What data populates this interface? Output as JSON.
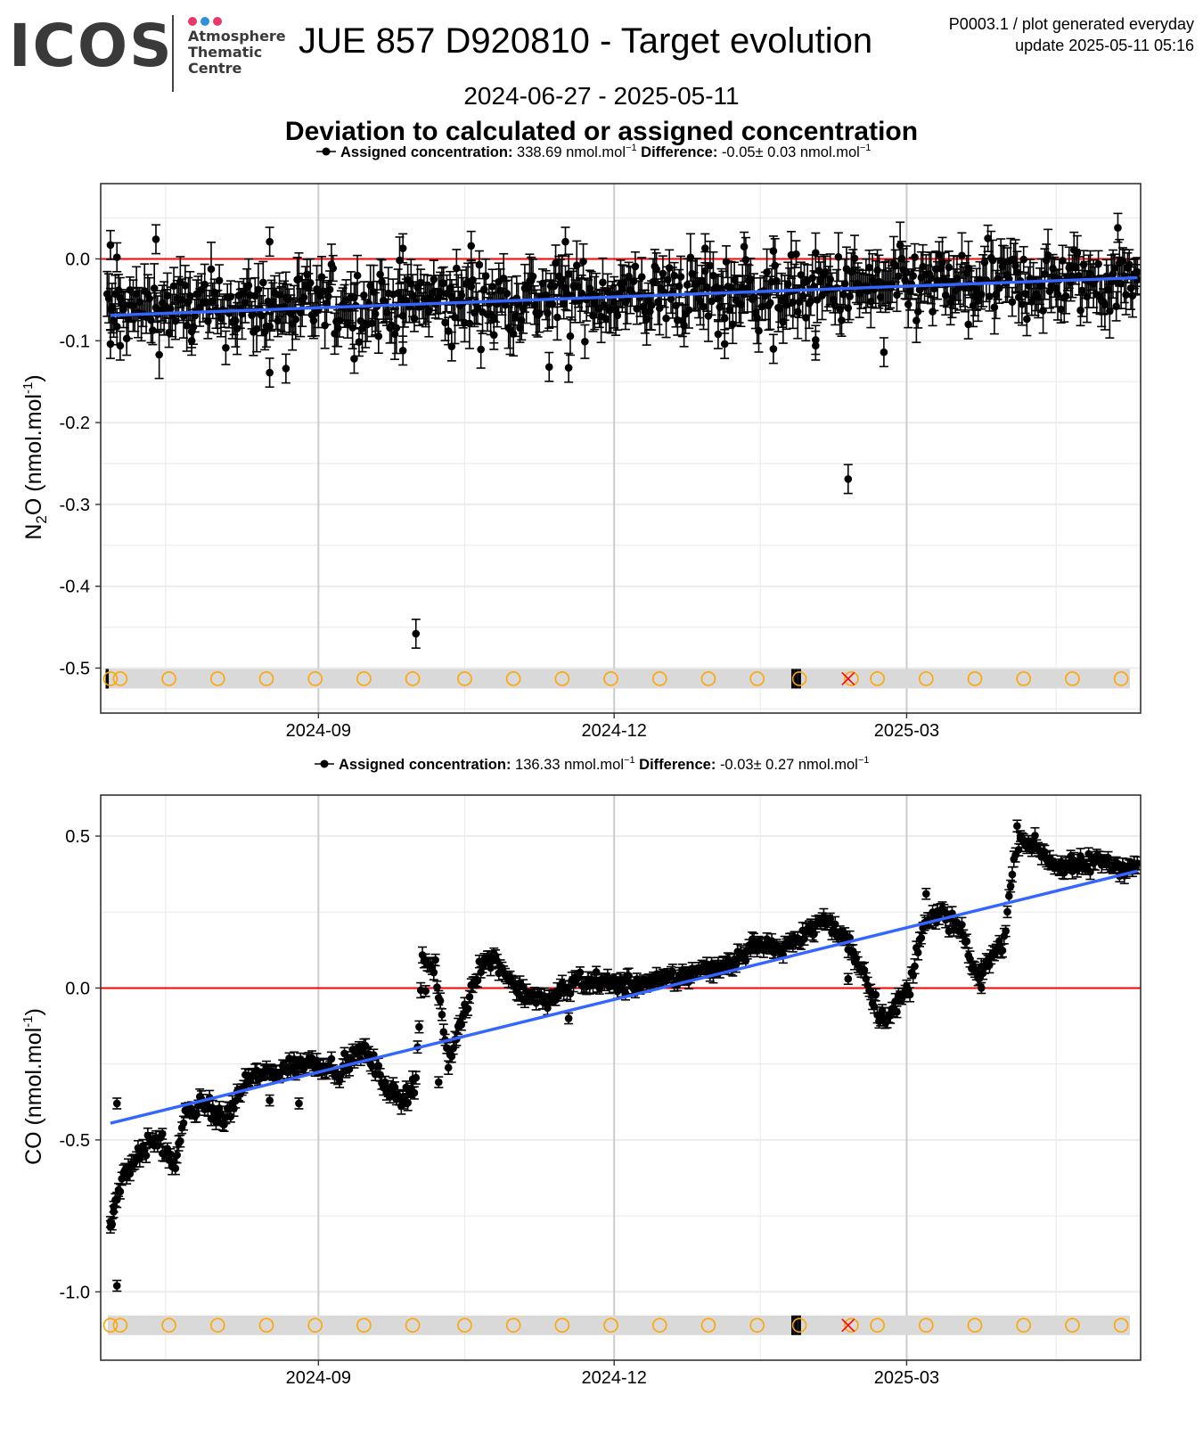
{
  "logo": {
    "word": "ICOS",
    "centre_lines": [
      "Atmosphere",
      "Thematic",
      "Centre"
    ],
    "dot_colors": [
      "#e8396a",
      "#2f8fd8",
      "#e8396a"
    ]
  },
  "header": {
    "title": "JUE 857 D920810 - Target evolution",
    "meta_line1": "P0003.1 / plot generated everyday",
    "meta_line2": "update  2025-05-11 05:16",
    "date_range": "2024-06-27 - 2025-05-11",
    "subtitle": "Deviation to calculated or assigned concentration"
  },
  "colors": {
    "points": "#000000",
    "zero_line": "#ff0000",
    "trend_line": "#3366ff",
    "flag_circle": "#ffa500",
    "flag_cross": "#ff0000",
    "flag_band": "#d9d9d9",
    "grid_major": "#cccccc",
    "grid_minor": "#ececec"
  },
  "chart_data": [
    {
      "type": "scatter",
      "gas": "N2O",
      "ylabel_main": "N",
      "ylabel_sub": "2",
      "ylabel_rest": "O (nmol.mol",
      "ylabel_sup": "-1",
      "ylabel_close": ")",
      "legend": {
        "label1": "Assigned concentration:",
        "value1": "338.69 nmol.mol",
        "label2": "Difference:",
        "value2": "-0.05± 0.03 nmol.mol",
        "unit_sup": "−1"
      },
      "xlim": [
        "2024-06-26",
        "2025-05-12"
      ],
      "ylim": [
        -0.555,
        0.092
      ],
      "x_ticks": [
        "2024-09-01",
        "2024-12-01",
        "2025-03-01"
      ],
      "x_tick_labels": [
        "2024-09",
        "2024-12",
        "2025-03"
      ],
      "y_ticks": [
        0.0,
        -0.1,
        -0.2,
        -0.3,
        -0.4,
        -0.5
      ],
      "y_tick_labels": [
        "0.0",
        "-0.1",
        "-0.2",
        "-0.3",
        "-0.4",
        "-0.5"
      ],
      "grid": true,
      "reference_line": 0.0,
      "trend": {
        "x": [
          "2024-06-29",
          "2025-05-11"
        ],
        "y": [
          -0.069,
          -0.023
        ]
      },
      "error_bar": 0.022,
      "dense_band": {
        "start": "2024-06-28",
        "end": "2025-05-11",
        "center_start": -0.064,
        "center_end": -0.026,
        "spread": 0.026,
        "step_days": 0.5
      },
      "highlighted_points": [
        {
          "x": "2024-06-29",
          "y": 0.017
        },
        {
          "x": "2024-06-29",
          "y": -0.104
        },
        {
          "x": "2024-07-01",
          "y": 0.002
        },
        {
          "x": "2024-07-02",
          "y": -0.106
        },
        {
          "x": "2024-07-13",
          "y": 0.024
        },
        {
          "x": "2024-07-24",
          "y": -0.1
        },
        {
          "x": "2024-08-17",
          "y": 0.021
        },
        {
          "x": "2024-08-17",
          "y": -0.139
        },
        {
          "x": "2024-08-22",
          "y": -0.134
        },
        {
          "x": "2024-09-12",
          "y": -0.122
        },
        {
          "x": "2024-09-27",
          "y": 0.013
        },
        {
          "x": "2024-09-27",
          "y": -0.112
        },
        {
          "x": "2024-10-01",
          "y": -0.458
        },
        {
          "x": "2024-10-12",
          "y": -0.107
        },
        {
          "x": "2024-10-18",
          "y": 0.016
        },
        {
          "x": "2024-10-25",
          "y": -0.093
        },
        {
          "x": "2024-11-11",
          "y": -0.132
        },
        {
          "x": "2024-11-16",
          "y": 0.021
        },
        {
          "x": "2024-11-17",
          "y": -0.133
        },
        {
          "x": "2024-12-29",
          "y": 0.013
        },
        {
          "x": "2025-01-02",
          "y": -0.092
        },
        {
          "x": "2025-01-04",
          "y": -0.104
        },
        {
          "x": "2025-01-10",
          "y": 0.015
        },
        {
          "x": "2025-01-19",
          "y": -0.11
        },
        {
          "x": "2025-02-01",
          "y": -0.099
        },
        {
          "x": "2025-02-01",
          "y": -0.106
        },
        {
          "x": "2025-02-11",
          "y": -0.269
        },
        {
          "x": "2025-02-22",
          "y": -0.114
        },
        {
          "x": "2025-03-20",
          "y": -0.08
        },
        {
          "x": "2025-05-05",
          "y": 0.038
        },
        {
          "x": "2025-05-11",
          "y": -0.016
        }
      ],
      "flag_band_y": -0.513,
      "flag_circles": [
        "2024-06-29",
        "2024-07-02",
        "2024-07-17",
        "2024-08-01",
        "2024-08-16",
        "2024-08-31",
        "2024-09-15",
        "2024-09-30",
        "2024-10-16",
        "2024-10-31",
        "2024-11-15",
        "2024-11-30",
        "2024-12-15",
        "2024-12-30",
        "2025-01-14",
        "2025-01-27",
        "2025-02-12",
        "2025-02-20",
        "2025-03-07",
        "2025-03-22",
        "2025-04-06",
        "2025-04-21",
        "2025-05-06"
      ],
      "flag_crosses": [
        "2025-02-11"
      ],
      "flag_bars": [
        "2024-06-28",
        "2025-01-25",
        "2025-01-26",
        "2025-01-27"
      ]
    },
    {
      "type": "scatter",
      "gas": "CO",
      "ylabel_main": "CO",
      "ylabel_sub": "",
      "ylabel_rest": " (nmol.mol",
      "ylabel_sup": "-1",
      "ylabel_close": ")",
      "legend": {
        "label1": "Assigned concentration:",
        "value1": "136.33 nmol.mol",
        "label2": "Difference:",
        "value2": "-0.03± 0.27 nmol.mol",
        "unit_sup": "−1"
      },
      "xlim": [
        "2024-06-26",
        "2025-05-12"
      ],
      "ylim": [
        -1.225,
        0.635
      ],
      "x_ticks": [
        "2024-09-01",
        "2024-12-01",
        "2025-03-01"
      ],
      "x_tick_labels": [
        "2024-09",
        "2024-12",
        "2025-03"
      ],
      "y_ticks": [
        0.5,
        0.0,
        -0.5,
        -1.0
      ],
      "y_tick_labels": [
        "0.5",
        "0.0",
        "-0.5",
        "-1.0"
      ],
      "grid": true,
      "reference_line": 0.0,
      "trend": {
        "x": [
          "2024-06-29",
          "2025-05-11"
        ],
        "y": [
          -0.445,
          0.385
        ]
      },
      "error_bar": 0.022,
      "series_profile": {
        "x": [
          "2024-06-29",
          "2024-07-01",
          "2024-07-04",
          "2024-07-08",
          "2024-07-13",
          "2024-07-19",
          "2024-07-22",
          "2024-07-28",
          "2024-08-03",
          "2024-08-10",
          "2024-08-20",
          "2024-08-31",
          "2024-09-08",
          "2024-09-15",
          "2024-09-20",
          "2024-09-26",
          "2024-10-01",
          "2024-10-03",
          "2024-10-07",
          "2024-10-11",
          "2024-10-15",
          "2024-10-20",
          "2024-10-25",
          "2024-11-01",
          "2024-11-10",
          "2024-11-20",
          "2024-12-01",
          "2024-12-15",
          "2024-12-25",
          "2025-01-05",
          "2025-01-15",
          "2025-01-22",
          "2025-01-28",
          "2025-02-04",
          "2025-02-11",
          "2025-02-16",
          "2025-02-21",
          "2025-02-26",
          "2025-03-02",
          "2025-03-06",
          "2025-03-12",
          "2025-03-18",
          "2025-03-22",
          "2025-03-27",
          "2025-03-31",
          "2025-04-04",
          "2025-04-07",
          "2025-04-12",
          "2025-04-16",
          "2025-04-22",
          "2025-04-30",
          "2025-05-06",
          "2025-05-11"
        ],
        "y": [
          -0.78,
          -0.68,
          -0.6,
          -0.54,
          -0.5,
          -0.58,
          -0.42,
          -0.38,
          -0.44,
          -0.3,
          -0.27,
          -0.24,
          -0.27,
          -0.2,
          -0.29,
          -0.38,
          -0.3,
          0.1,
          0.05,
          -0.25,
          -0.1,
          0.06,
          0.1,
          0.0,
          -0.05,
          0.03,
          0.01,
          0.02,
          0.05,
          0.08,
          0.15,
          0.12,
          0.18,
          0.22,
          0.15,
          0.05,
          -0.1,
          -0.06,
          0.0,
          0.22,
          0.24,
          0.19,
          0.03,
          0.1,
          0.16,
          0.5,
          0.48,
          0.45,
          0.4,
          0.4,
          0.42,
          0.4,
          0.4
        ]
      },
      "jitter": 0.025,
      "highlighted_points": [
        {
          "x": "2024-06-29",
          "y": -0.77
        },
        {
          "x": "2024-06-30",
          "y": -0.72
        },
        {
          "x": "2024-07-01",
          "y": -0.98
        },
        {
          "x": "2024-07-01",
          "y": -0.38
        },
        {
          "x": "2024-07-15",
          "y": -0.48
        },
        {
          "x": "2024-08-17",
          "y": -0.37
        },
        {
          "x": "2024-08-26",
          "y": -0.38
        },
        {
          "x": "2024-09-27",
          "y": -0.38
        },
        {
          "x": "2024-10-04",
          "y": -0.01
        },
        {
          "x": "2024-10-08",
          "y": -0.31
        },
        {
          "x": "2024-11-17",
          "y": -0.1
        },
        {
          "x": "2025-02-11",
          "y": 0.03
        },
        {
          "x": "2025-03-07",
          "y": 0.31
        },
        {
          "x": "2025-03-24",
          "y": 0.0
        },
        {
          "x": "2025-04-05",
          "y": 0.5
        }
      ],
      "flag_band_y": -1.11,
      "flag_circles": [
        "2024-06-29",
        "2024-07-02",
        "2024-07-17",
        "2024-08-01",
        "2024-08-16",
        "2024-08-31",
        "2024-09-15",
        "2024-09-30",
        "2024-10-16",
        "2024-10-31",
        "2024-11-15",
        "2024-11-30",
        "2024-12-15",
        "2024-12-30",
        "2025-01-14",
        "2025-01-27",
        "2025-02-12",
        "2025-02-20",
        "2025-03-07",
        "2025-03-22",
        "2025-04-06",
        "2025-04-21",
        "2025-05-06"
      ],
      "flag_crosses": [
        "2025-02-11"
      ],
      "flag_bars": [
        "2025-01-25",
        "2025-01-26",
        "2025-01-27"
      ]
    }
  ]
}
